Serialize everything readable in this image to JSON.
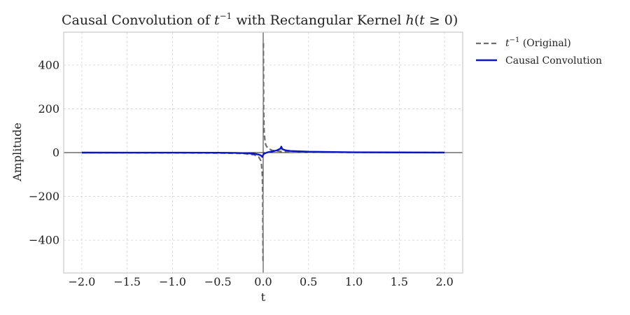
{
  "chart_data": {
    "type": "line",
    "title_parts": {
      "pre": "Causal Convolution of ",
      "t": "t",
      "exp": "−1",
      "mid": " with Rectangular Kernel ",
      "h": "h",
      "paren_open": "(",
      "cond": "t",
      "geq": " ≥ 0",
      "paren_close": ")"
    },
    "xlabel": "t",
    "ylabel": "Amplitude",
    "xlim": [
      -2.2,
      2.2
    ],
    "ylim": [
      -550,
      550
    ],
    "xticks": [
      -2.0,
      -1.5,
      -1.0,
      -0.5,
      0.0,
      0.5,
      1.0,
      1.5,
      2.0
    ],
    "xtick_labels": [
      "−2.0",
      "−1.5",
      "−1.0",
      "−0.5",
      "0.0",
      "0.5",
      "1.0",
      "1.5",
      "2.0"
    ],
    "yticks": [
      400,
      200,
      0,
      -200,
      -400
    ],
    "ytick_labels": [
      "400",
      "200",
      "0",
      "−200",
      "−400"
    ],
    "grid": true,
    "legend_placement": "outside-upper-right",
    "series": [
      {
        "key": "original",
        "name_t": "t",
        "name_exp": "−1",
        "name_suffix": " (Original)",
        "color": "#6e6e6e",
        "style": "dashed",
        "x": [
          -2.0,
          -1.5,
          -1.0,
          -0.5,
          -0.3,
          -0.2,
          -0.1,
          -0.05,
          -0.03,
          -0.02,
          -0.01,
          -0.005,
          -0.002,
          0.002,
          0.005,
          0.01,
          0.02,
          0.03,
          0.05,
          0.1,
          0.2,
          0.3,
          0.5,
          1.0,
          1.5,
          2.0
        ],
        "y": [
          -0.5,
          -0.667,
          -1.0,
          -2.0,
          -3.333,
          -5.0,
          -10.0,
          -20.0,
          -33.3,
          -50.0,
          -100.0,
          -200.0,
          -500.0,
          500.0,
          200.0,
          100.0,
          50.0,
          33.3,
          20.0,
          10.0,
          5.0,
          3.333,
          2.0,
          1.0,
          0.667,
          0.5
        ]
      },
      {
        "key": "convolution",
        "name": "Causal Convolution",
        "color": "#0a14c8",
        "style": "solid",
        "x": [
          -2.0,
          -1.5,
          -1.0,
          -0.5,
          -0.3,
          -0.2,
          -0.1,
          -0.05,
          -0.03,
          -0.02,
          -0.01,
          0.0,
          0.01,
          0.05,
          0.1,
          0.15,
          0.19,
          0.2,
          0.21,
          0.25,
          0.3,
          0.5,
          1.0,
          1.5,
          2.0
        ],
        "y": [
          0.0,
          -0.1,
          -0.2,
          -0.5,
          -1.5,
          -2.5,
          -5.5,
          -9.0,
          -12.0,
          -15.0,
          -20.0,
          -10.0,
          -5.0,
          1.5,
          5.5,
          10.0,
          18.0,
          27.0,
          16.0,
          10.0,
          7.5,
          4.0,
          1.5,
          0.8,
          0.3
        ]
      }
    ]
  }
}
